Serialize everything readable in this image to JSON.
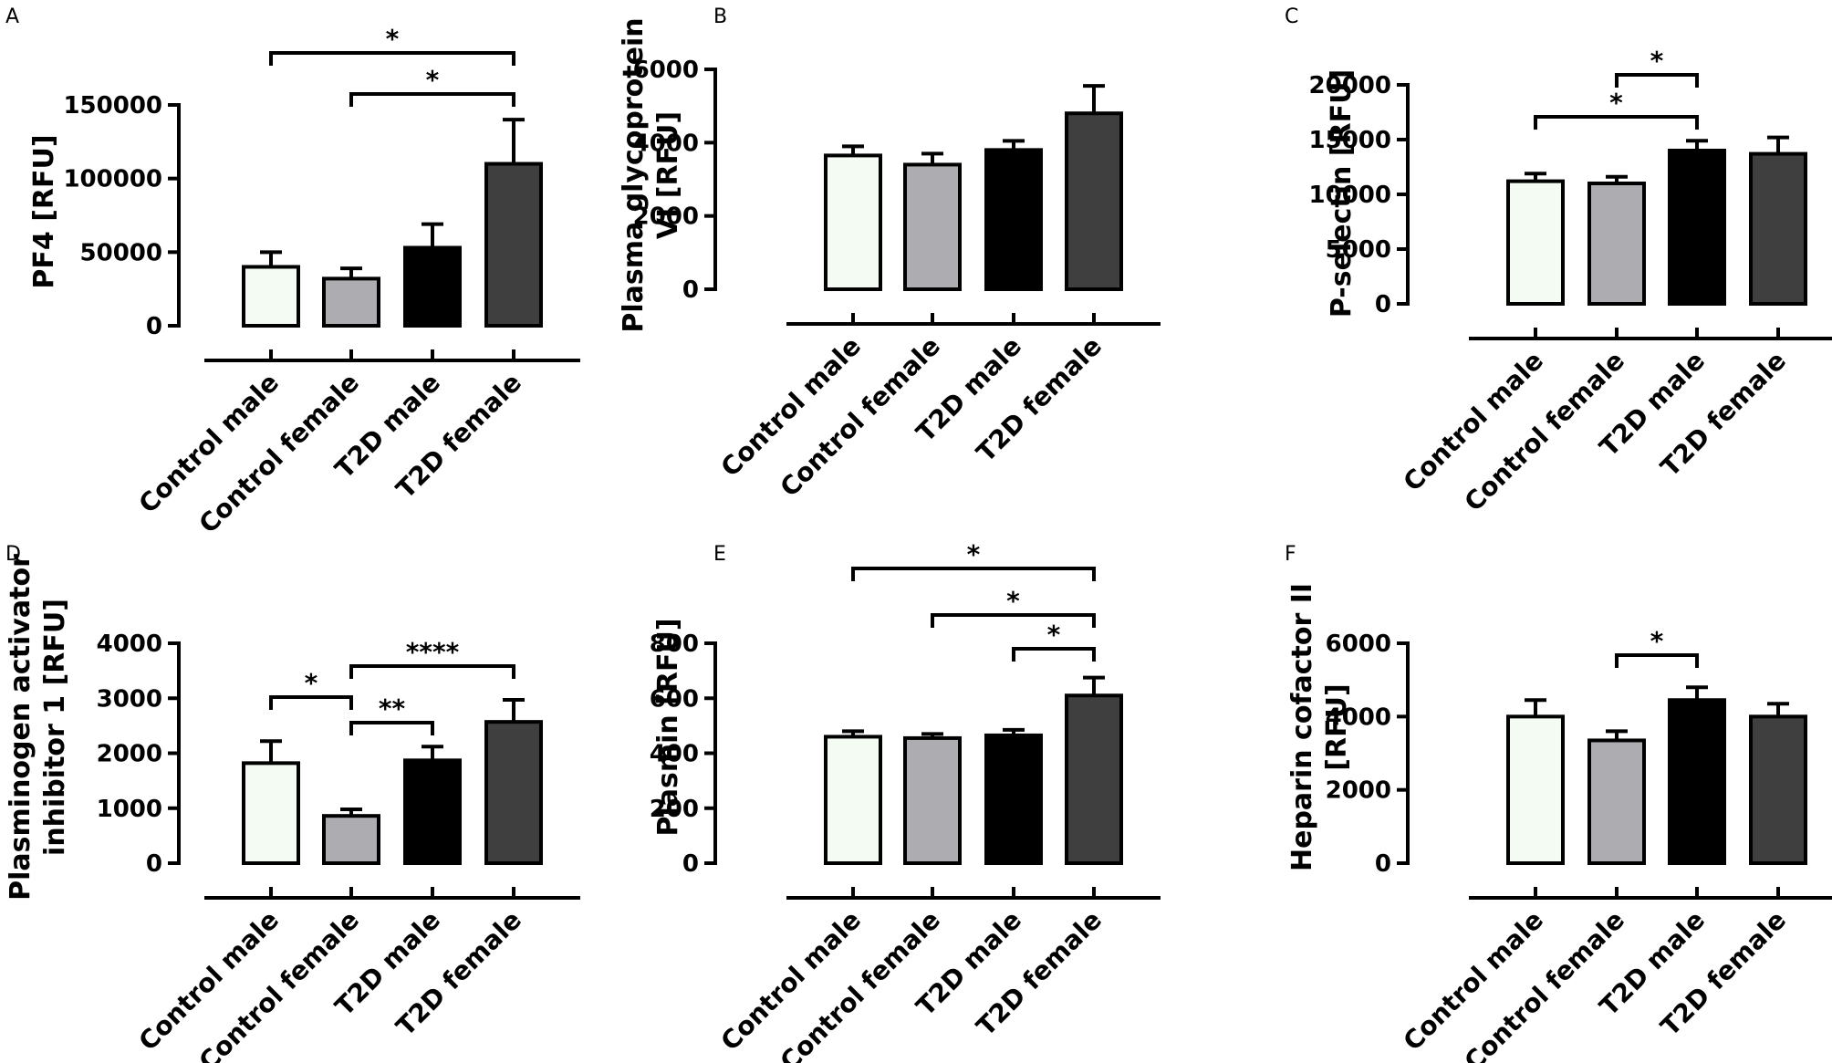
{
  "categories": [
    "Control male",
    "Control female",
    "T2D male",
    "T2D female"
  ],
  "colors": {
    "control_male": "#f3fbf2",
    "control_female": "#adacb1",
    "t2d_male": "#000000",
    "t2d_female": "#3f3f3f"
  },
  "chart_data": [
    {
      "type": "bar",
      "letter": "A",
      "ylabel": [
        "PF4 [RFU]"
      ],
      "ylim": [
        0,
        150000
      ],
      "yticks": [
        0,
        50000,
        100000,
        150000
      ],
      "values": [
        40000,
        32000,
        53000,
        110000
      ],
      "errors": [
        10000,
        7000,
        16000,
        30000
      ],
      "significance": [
        {
          "from": 0,
          "to": 3,
          "label": "*"
        },
        {
          "from": 1,
          "to": 3,
          "label": "*"
        }
      ]
    },
    {
      "type": "bar",
      "letter": "B",
      "ylabel": [
        "Plasma glycoprotein",
        "VI [RFU]"
      ],
      "ylim": [
        0,
        6000
      ],
      "yticks": [
        0,
        2000,
        4000,
        6000
      ],
      "values": [
        3650,
        3400,
        3800,
        4800
      ],
      "errors": [
        250,
        300,
        250,
        750
      ],
      "significance": []
    },
    {
      "type": "bar",
      "letter": "C",
      "ylabel": [
        "P-selectin [RFU]"
      ],
      "ylim": [
        0,
        20000
      ],
      "yticks": [
        0,
        5000,
        10000,
        15000,
        20000
      ],
      "values": [
        11200,
        11000,
        14000,
        13700
      ],
      "errors": [
        700,
        600,
        900,
        1500
      ],
      "significance": [
        {
          "from": 1,
          "to": 2,
          "label": "*"
        },
        {
          "from": 0,
          "to": 2,
          "label": "*"
        }
      ]
    },
    {
      "type": "bar",
      "letter": "D",
      "ylabel": [
        "Plasminogen activator",
        "inhibitor 1 [RFU]"
      ],
      "ylim": [
        0,
        4000
      ],
      "yticks": [
        0,
        1000,
        2000,
        3000,
        4000
      ],
      "values": [
        1820,
        860,
        1870,
        2570
      ],
      "errors": [
        400,
        120,
        250,
        400
      ],
      "significance": [
        {
          "from": 0,
          "to": 1,
          "label": "*"
        },
        {
          "from": 1,
          "to": 3,
          "label": "****"
        },
        {
          "from": 1,
          "to": 2,
          "label": "**"
        }
      ]
    },
    {
      "type": "bar",
      "letter": "E",
      "ylabel": [
        "Plasmin [RFU]"
      ],
      "ylim": [
        0,
        800
      ],
      "yticks": [
        0,
        200,
        400,
        600,
        800
      ],
      "values": [
        460,
        455,
        465,
        610
      ],
      "errors": [
        20,
        15,
        20,
        65
      ],
      "significance": [
        {
          "from": 0,
          "to": 3,
          "label": "*"
        },
        {
          "from": 1,
          "to": 3,
          "label": "*"
        },
        {
          "from": 2,
          "to": 3,
          "label": "*"
        }
      ]
    },
    {
      "type": "bar",
      "letter": "F",
      "ylabel": [
        "Heparin cofactor II",
        "[RFU]"
      ],
      "ylim": [
        0,
        6000
      ],
      "yticks": [
        0,
        2000,
        4000,
        6000
      ],
      "values": [
        4000,
        3350,
        4450,
        4000
      ],
      "errors": [
        450,
        250,
        350,
        350
      ],
      "significance": [
        {
          "from": 1,
          "to": 2,
          "label": "*"
        }
      ]
    }
  ]
}
